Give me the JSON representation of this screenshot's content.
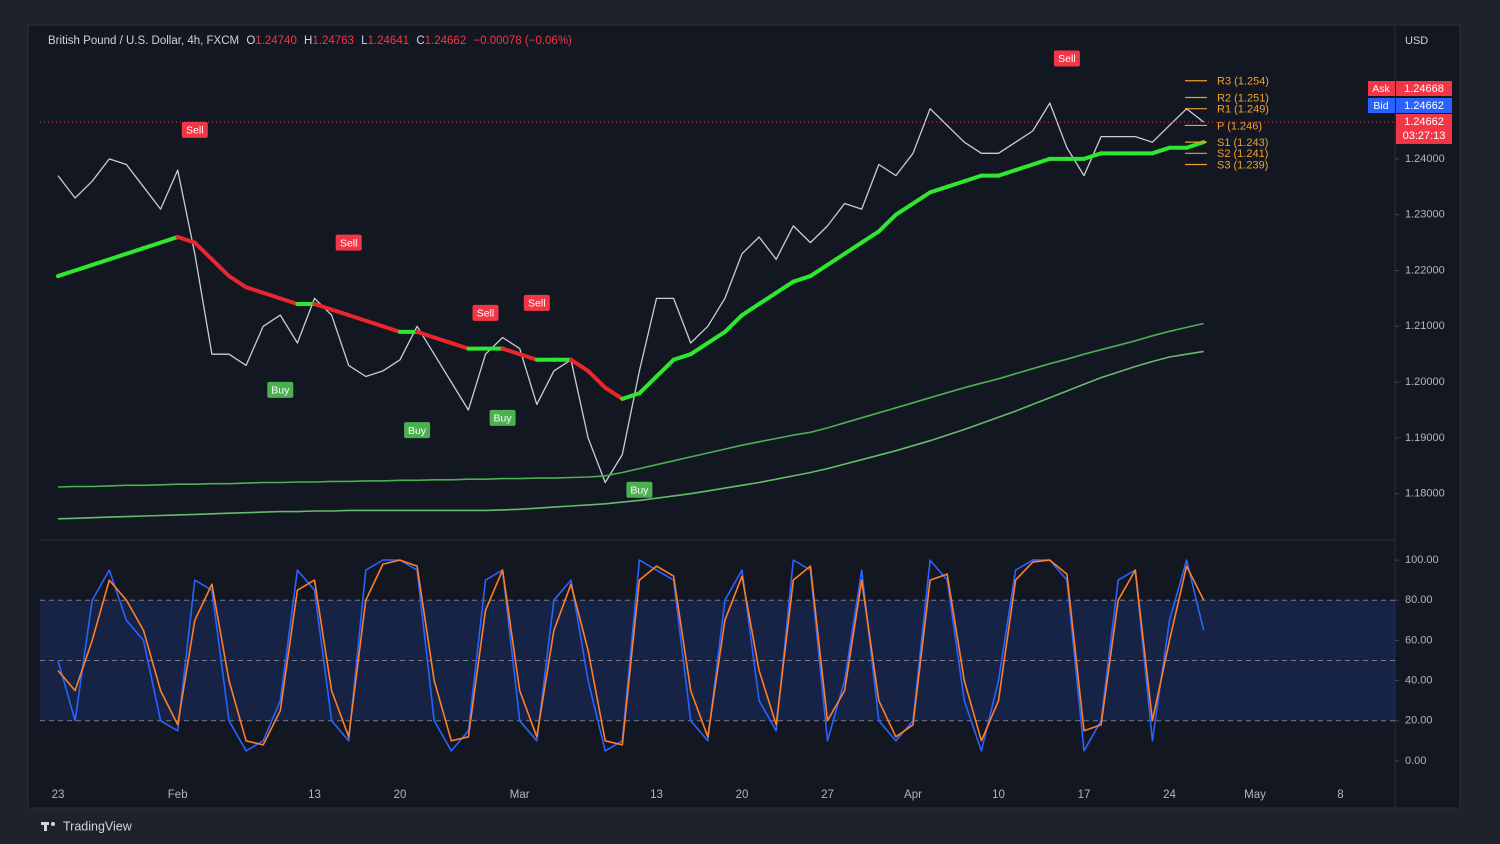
{
  "header": {
    "symbol": "British Pound / U.S. Dollar, 4h, FXCM",
    "o_label": "O",
    "o": "1.24740",
    "h_label": "H",
    "h": "1.24763",
    "l_label": "L",
    "l": "1.24641",
    "c_label": "C",
    "c": "1.24662",
    "change": "−0.00078 (−0.06%)",
    "currency": "USD",
    "ask_label": "Ask",
    "ask": 1.24668,
    "bid_label": "Bid",
    "bid": 1.24662,
    "brand": "TradingView"
  },
  "chart_data": [
    {
      "type": "line",
      "categories": [
        "23",
        null,
        null,
        null,
        null,
        null,
        null,
        "Feb",
        null,
        null,
        null,
        null,
        null,
        null,
        null,
        "13",
        null,
        null,
        null,
        null,
        "20",
        null,
        null,
        null,
        null,
        null,
        null,
        "Mar",
        null,
        null,
        null,
        null,
        null,
        null,
        null,
        "13",
        null,
        null,
        null,
        null,
        "20",
        null,
        null,
        null,
        null,
        "27",
        null,
        null,
        null,
        null,
        "Apr",
        null,
        null,
        null,
        null,
        "10",
        null,
        null,
        null,
        null,
        "17",
        null,
        null,
        null,
        null,
        "24",
        null,
        null,
        null,
        null,
        "May",
        null,
        null,
        null,
        null,
        "8"
      ],
      "series": [
        {
          "color": "#c9ccd4",
          "values": [
            1.237,
            1.233,
            1.236,
            1.24,
            1.239,
            1.235,
            1.231,
            1.238,
            1.223,
            1.205,
            1.205,
            1.203,
            1.21,
            1.212,
            1.207,
            1.215,
            1.212,
            1.203,
            1.201,
            1.202,
            1.204,
            1.21,
            1.205,
            1.2,
            1.195,
            1.205,
            1.208,
            1.206,
            1.196,
            1.202,
            1.204,
            1.19,
            1.182,
            1.187,
            1.202,
            1.215,
            1.215,
            1.207,
            1.21,
            1.215,
            1.223,
            1.226,
            1.222,
            1.228,
            1.225,
            1.228,
            1.232,
            1.231,
            1.239,
            1.237,
            1.241,
            1.249,
            1.246,
            1.243,
            1.241,
            1.241,
            1.243,
            1.245,
            1.25,
            1.242,
            1.237,
            1.244,
            1.244,
            1.244,
            1.243,
            1.246,
            1.249,
            1.2466,
            null,
            null,
            null,
            null,
            null,
            null,
            null,
            null
          ]
        },
        {
          "color": "#2ee830",
          "down_color": "#e8262b",
          "values": [
            1.219,
            1.22,
            1.221,
            1.222,
            1.223,
            1.224,
            1.225,
            1.226,
            1.225,
            1.222,
            1.219,
            1.217,
            1.216,
            1.215,
            1.214,
            1.214,
            1.213,
            1.212,
            1.211,
            1.21,
            1.209,
            1.209,
            1.208,
            1.207,
            1.206,
            1.206,
            1.206,
            1.205,
            1.204,
            1.204,
            1.204,
            1.202,
            1.199,
            1.197,
            1.198,
            1.201,
            1.204,
            1.205,
            1.207,
            1.209,
            1.212,
            1.214,
            1.216,
            1.218,
            1.219,
            1.221,
            1.223,
            1.225,
            1.227,
            1.23,
            1.232,
            1.234,
            1.235,
            1.236,
            1.237,
            1.237,
            1.238,
            1.239,
            1.24,
            1.24,
            1.24,
            1.241,
            1.241,
            1.241,
            1.241,
            1.242,
            1.242,
            1.243,
            null,
            null,
            null,
            null,
            null,
            null,
            null,
            null
          ]
        },
        {
          "color": "#4caf50",
          "values": [
            1.1812,
            1.1813,
            1.1813,
            1.1814,
            1.1815,
            1.1815,
            1.1816,
            1.1817,
            1.1817,
            1.1818,
            1.1818,
            1.1819,
            1.182,
            1.182,
            1.1821,
            1.1821,
            1.1822,
            1.1822,
            1.1823,
            1.1823,
            1.1824,
            1.1824,
            1.1825,
            1.1825,
            1.1826,
            1.1826,
            1.1827,
            1.1827,
            1.1828,
            1.1828,
            1.1829,
            1.183,
            1.1832,
            1.1838,
            1.1845,
            1.1852,
            1.1859,
            1.1866,
            1.1873,
            1.188,
            1.1887,
            1.1893,
            1.1899,
            1.1905,
            1.191,
            1.1918,
            1.1927,
            1.1936,
            1.1945,
            1.1954,
            1.1963,
            1.1972,
            1.1981,
            1.199,
            1.1998,
            1.2006,
            1.2015,
            1.2024,
            1.2033,
            1.2041,
            1.205,
            1.2058,
            1.2066,
            1.2074,
            1.2083,
            1.2091,
            1.2098,
            1.2105,
            null,
            null,
            null,
            null,
            null,
            null,
            null,
            null
          ]
        },
        {
          "color": "#66bb6a",
          "values": [
            1.1755,
            1.1756,
            1.1757,
            1.1758,
            1.1759,
            1.176,
            1.1761,
            1.1762,
            1.1763,
            1.1764,
            1.1765,
            1.1766,
            1.1767,
            1.1768,
            1.1768,
            1.1769,
            1.1769,
            1.177,
            1.177,
            1.177,
            1.177,
            1.177,
            1.177,
            1.177,
            1.177,
            1.177,
            1.1771,
            1.1772,
            1.1774,
            1.1776,
            1.1778,
            1.178,
            1.1782,
            1.1785,
            1.1788,
            1.1792,
            1.1796,
            1.18,
            1.1805,
            1.181,
            1.1815,
            1.182,
            1.1826,
            1.1832,
            1.1838,
            1.1845,
            1.1853,
            1.1861,
            1.1869,
            1.1877,
            1.1886,
            1.1895,
            1.1905,
            1.1915,
            1.1926,
            1.1937,
            1.1948,
            1.196,
            1.1972,
            1.1984,
            1.1996,
            1.2008,
            1.2018,
            1.2028,
            1.2037,
            1.2045,
            1.205,
            1.2055,
            null,
            null,
            null,
            null,
            null,
            null,
            null,
            null
          ]
        }
      ],
      "sell_label": "Sell",
      "sell_color": "#f23645",
      "sell_signals": [
        null,
        null,
        null,
        null,
        null,
        null,
        null,
        null,
        1.2452,
        null,
        null,
        null,
        null,
        null,
        null,
        null,
        null,
        1.225,
        null,
        null,
        null,
        null,
        null,
        null,
        null,
        1.2124,
        null,
        null,
        1.2142,
        null,
        null,
        null,
        null,
        null,
        null,
        null,
        null,
        null,
        null,
        null,
        null,
        null,
        null,
        null,
        null,
        null,
        null,
        null,
        null,
        null,
        null,
        null,
        null,
        null,
        null,
        null,
        null,
        null,
        null,
        1.258,
        null,
        null,
        null,
        null,
        null,
        null,
        null,
        null,
        null,
        null,
        null,
        null,
        null,
        null,
        null,
        null
      ],
      "buy_label": "Buy",
      "buy_color": "#4caf50",
      "buy_signals": [
        null,
        null,
        null,
        null,
        null,
        null,
        null,
        null,
        null,
        null,
        null,
        null,
        null,
        1.1986,
        null,
        null,
        null,
        null,
        null,
        null,
        null,
        1.1914,
        null,
        null,
        null,
        null,
        1.1936,
        null,
        null,
        null,
        null,
        null,
        null,
        null,
        1.1807,
        null,
        null,
        null,
        null,
        null,
        null,
        null,
        null,
        null,
        null,
        null,
        null,
        null,
        null,
        null,
        null,
        null,
        null,
        null,
        null,
        null,
        null,
        null,
        null,
        null,
        null,
        null,
        null,
        null,
        null,
        null,
        null,
        null,
        null,
        null,
        null,
        null,
        null,
        null,
        null,
        null
      ],
      "pivots": [
        {
          "label": "R3 (1.254)",
          "value": 1.254
        },
        {
          "label": "R2 (1.251)",
          "value": 1.251
        },
        {
          "label": "R1 (1.249)",
          "value": 1.249
        },
        {
          "label": "P (1.246)",
          "value": 1.246
        },
        {
          "label": "S1 (1.243)",
          "value": 1.243
        },
        {
          "label": "S2 (1.241)",
          "value": 1.241
        },
        {
          "label": "S3 (1.239)",
          "value": 1.239
        }
      ],
      "pivot_color": "#f0a030",
      "last_price": 1.24662,
      "countdown": "03:27:13",
      "ylim": [
        1.1726,
        1.2631
      ],
      "yticks": [
        {
          "value": 1.18,
          "label": "1.18000"
        },
        {
          "value": 1.19,
          "label": "1.19000"
        },
        {
          "value": 1.2,
          "label": "1.20000"
        },
        {
          "value": 1.21,
          "label": "1.21000"
        },
        {
          "value": 1.22,
          "label": "1.22000"
        },
        {
          "value": 1.23,
          "label": "1.23000"
        },
        {
          "value": 1.24,
          "label": "1.24000"
        }
      ]
    },
    {
      "type": "line",
      "series": [
        {
          "color": "#2962ff",
          "values": [
            50,
            20,
            80,
            95,
            70,
            60,
            20,
            15,
            90,
            85,
            20,
            5,
            10,
            30,
            95,
            85,
            20,
            10,
            95,
            100,
            100,
            95,
            20,
            5,
            15,
            90,
            95,
            20,
            10,
            80,
            90,
            40,
            5,
            10,
            100,
            95,
            90,
            20,
            10,
            80,
            95,
            30,
            15,
            100,
            95,
            10,
            40,
            95,
            20,
            10,
            20,
            100,
            90,
            30,
            5,
            40,
            95,
            100,
            100,
            90,
            5,
            20,
            90,
            95,
            10,
            70,
            100,
            65,
            null,
            null,
            null,
            null,
            null,
            null,
            null,
            null
          ]
        },
        {
          "color": "#ff7f27",
          "values": [
            45,
            35,
            60,
            90,
            80,
            65,
            35,
            18,
            70,
            88,
            40,
            10,
            8,
            25,
            85,
            90,
            35,
            12,
            80,
            98,
            100,
            97,
            40,
            10,
            12,
            75,
            95,
            35,
            12,
            65,
            88,
            55,
            10,
            8,
            90,
            97,
            92,
            35,
            12,
            70,
            92,
            45,
            18,
            90,
            97,
            20,
            35,
            90,
            30,
            12,
            18,
            90,
            93,
            40,
            10,
            30,
            90,
            99,
            100,
            93,
            15,
            18,
            80,
            95,
            20,
            60,
            97,
            80,
            null,
            null,
            null,
            null,
            null,
            null,
            null,
            null
          ]
        }
      ],
      "band": [
        20,
        80
      ],
      "band_color": "rgba(41,98,255,0.16)",
      "levels": [
        20,
        50,
        80
      ],
      "ylim": [
        -9.5,
        107.5
      ],
      "yticks": [
        {
          "value": 0,
          "label": "0.00"
        },
        {
          "value": 20,
          "label": "20.00"
        },
        {
          "value": 40,
          "label": "40.00"
        },
        {
          "value": 60,
          "label": "60.00"
        },
        {
          "value": 80,
          "label": "80.00"
        },
        {
          "value": 100,
          "label": "100.00"
        }
      ]
    }
  ]
}
